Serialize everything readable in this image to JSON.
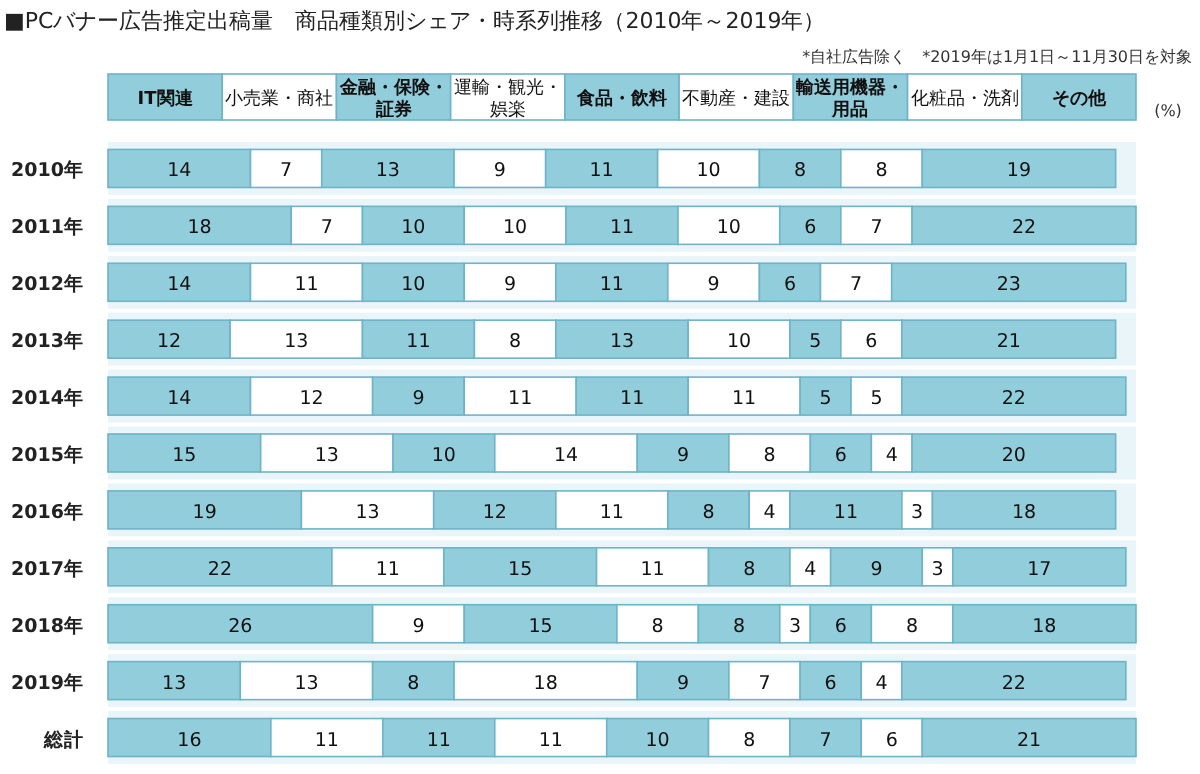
{
  "chart_data": {
    "type": "bar",
    "orientation": "horizontal",
    "stacked": true,
    "data_labels": true,
    "legend": "top",
    "title": "■PCバナー広告推定出稿量　商品種類別シェア・時系列推移（2010年～2019年）",
    "annotations": [
      "*自社広告除く　*2019年は1月1日～11月30日を対象",
      "(%)"
    ],
    "categories": [
      "2010年",
      "2011年",
      "2012年",
      "2013年",
      "2014年",
      "2015年",
      "2016年",
      "2017年",
      "2018年",
      "2019年",
      "総計"
    ],
    "series": [
      {
        "name": "IT関連",
        "color": "#92cddc",
        "values": [
          14,
          18,
          14,
          12,
          14,
          15,
          19,
          22,
          26,
          13,
          16
        ]
      },
      {
        "name": "小売業・商社",
        "color": "#ffffff",
        "values": [
          7,
          7,
          11,
          13,
          12,
          13,
          13,
          11,
          9,
          13,
          11
        ]
      },
      {
        "name": "金融・保険・証券",
        "color": "#92cddc",
        "values": [
          13,
          10,
          10,
          11,
          9,
          10,
          12,
          15,
          15,
          8,
          11
        ]
      },
      {
        "name": "運輸・観光・娯楽",
        "color": "#ffffff",
        "values": [
          9,
          10,
          9,
          8,
          11,
          14,
          11,
          11,
          8,
          18,
          11
        ]
      },
      {
        "name": "食品・飲料",
        "color": "#92cddc",
        "values": [
          11,
          11,
          11,
          13,
          11,
          9,
          8,
          8,
          8,
          9,
          10
        ]
      },
      {
        "name": "不動産・建設",
        "color": "#ffffff",
        "values": [
          10,
          10,
          9,
          10,
          11,
          8,
          4,
          4,
          3,
          7,
          8
        ]
      },
      {
        "name": "輸送用機器・用品",
        "color": "#92cddc",
        "values": [
          8,
          6,
          6,
          5,
          5,
          6,
          11,
          9,
          6,
          6,
          7
        ]
      },
      {
        "name": "化粧品・洗剤",
        "color": "#ffffff",
        "values": [
          8,
          7,
          7,
          6,
          5,
          4,
          3,
          3,
          8,
          4,
          6
        ]
      },
      {
        "name": "その他",
        "color": "#92cddc",
        "values": [
          19,
          22,
          23,
          21,
          22,
          20,
          18,
          17,
          18,
          22,
          21
        ]
      }
    ]
  }
}
